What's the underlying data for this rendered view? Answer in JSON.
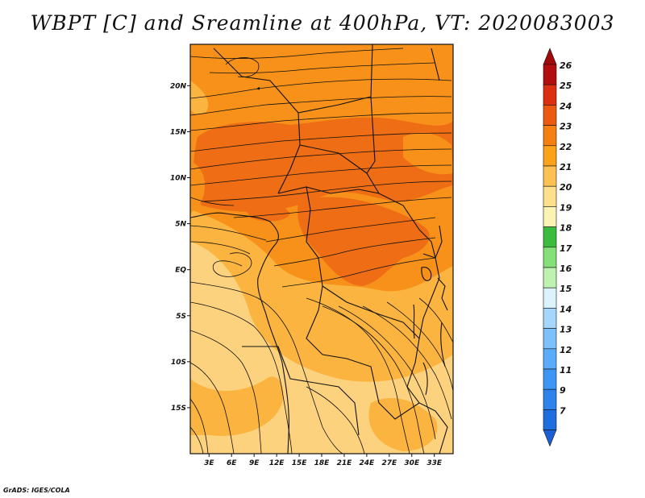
{
  "title": "WBPT [C] and Sreamline at 400hPa, VT: 2020083003",
  "credit": "GrADS: IGES/COLA",
  "map": {
    "y_ticks": [
      {
        "label": "20N",
        "lat": 20
      },
      {
        "label": "15N",
        "lat": 15
      },
      {
        "label": "10N",
        "lat": 10
      },
      {
        "label": "5N",
        "lat": 5
      },
      {
        "label": "EQ",
        "lat": 0
      },
      {
        "label": "5S",
        "lat": -5
      },
      {
        "label": "10S",
        "lat": -10
      },
      {
        "label": "15S",
        "lat": -15
      }
    ],
    "x_ticks": [
      {
        "label": "3E",
        "lon": 3
      },
      {
        "label": "6E",
        "lon": 6
      },
      {
        "label": "9E",
        "lon": 9
      },
      {
        "label": "12E",
        "lon": 12
      },
      {
        "label": "15E",
        "lon": 15
      },
      {
        "label": "18E",
        "lon": 18
      },
      {
        "label": "21E",
        "lon": 21
      },
      {
        "label": "24E",
        "lon": 24
      },
      {
        "label": "27E",
        "lon": 27
      },
      {
        "label": "30E",
        "lon": 30
      },
      {
        "label": "33E",
        "lon": 33
      }
    ],
    "lon_range": [
      0.5,
      35.5
    ],
    "lat_range": [
      -20,
      24.5
    ]
  },
  "colorbar": {
    "levels": [
      {
        "label": "7",
        "color": "#1e6ee0"
      },
      {
        "label": "9",
        "color": "#2d82ec"
      },
      {
        "label": "11",
        "color": "#3c96f5"
      },
      {
        "label": "12",
        "color": "#5aabfa"
      },
      {
        "label": "13",
        "color": "#7dc1fc"
      },
      {
        "label": "14",
        "color": "#a5d7fd"
      },
      {
        "label": "15",
        "color": "#ddf3fb"
      },
      {
        "label": "16",
        "color": "#bdf2b0"
      },
      {
        "label": "17",
        "color": "#86e07a"
      },
      {
        "label": "18",
        "color": "#3cbc3c"
      },
      {
        "label": "19",
        "color": "#fbf3b4"
      },
      {
        "label": "20",
        "color": "#fde08c"
      },
      {
        "label": "21",
        "color": "#fcc153"
      },
      {
        "label": "22",
        "color": "#f9a21a"
      },
      {
        "label": "23",
        "color": "#f57f10"
      },
      {
        "label": "24",
        "color": "#ec5a12"
      },
      {
        "label": "25",
        "color": "#dc2e10"
      },
      {
        "label": "26",
        "color": "#b30e0e"
      }
    ],
    "bottom_color": "#1e5ed4",
    "top_color": "#a10a0a"
  },
  "field_colors": {
    "c20": "#fdd27e",
    "c21": "#fbb43f",
    "c22": "#f7911a",
    "c23": "#ef6d14"
  }
}
